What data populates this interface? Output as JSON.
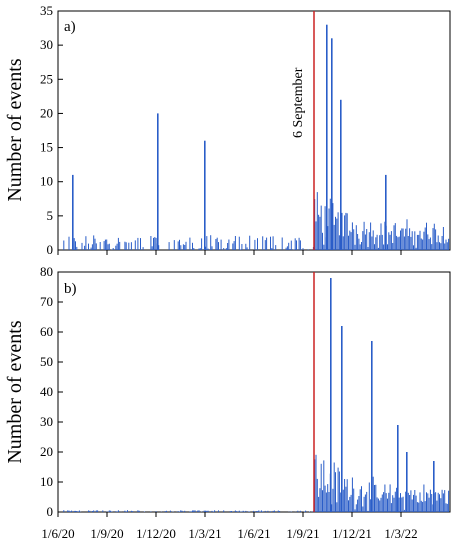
{
  "chart_data": [
    {
      "type": "bar",
      "panel_label": "a)",
      "ylabel": "Number of events",
      "xlabel": "",
      "ylim": [
        0,
        35
      ],
      "yticks": [
        0,
        5,
        10,
        15,
        20,
        25,
        30,
        35
      ],
      "annotation": "6 September",
      "event_marker": "1/9/21",
      "colors": {
        "bars": "#2a5dc8",
        "marker": "#cc2222"
      },
      "peaks": [
        {
          "x": "late 6/20",
          "y": 11
        },
        {
          "x": "late 11/20",
          "y": 20
        },
        {
          "x": "mid 2/21",
          "y": 16
        },
        {
          "x": "mid 9/21",
          "y": 33
        },
        {
          "x": "late 9/21",
          "y": 31
        },
        {
          "x": "early 10/21",
          "y": 22
        },
        {
          "x": "late 12/21",
          "y": 11
        }
      ]
    },
    {
      "type": "bar",
      "panel_label": "b)",
      "ylabel": "Number of events",
      "xlabel": "",
      "ylim": [
        0,
        80
      ],
      "yticks": [
        0,
        10,
        20,
        30,
        40,
        50,
        60,
        70,
        80
      ],
      "xtick_labels": [
        "1/6/20",
        "1/9/20",
        "1/12/20",
        "1/3/21",
        "1/6/21",
        "1/9/21",
        "1/12/21",
        "1/3/22"
      ],
      "event_marker": "1/9/21",
      "colors": {
        "bars": "#2a5dc8",
        "marker": "#cc2222"
      },
      "peaks": [
        {
          "x": "mid 9/21",
          "y": 78
        },
        {
          "x": "early 10/21",
          "y": 62
        },
        {
          "x": "late 11/21",
          "y": 57
        },
        {
          "x": "late 1/22",
          "y": 29
        },
        {
          "x": "mid 2/22",
          "y": 20
        },
        {
          "x": "late 3/22",
          "y": 17
        }
      ]
    }
  ]
}
